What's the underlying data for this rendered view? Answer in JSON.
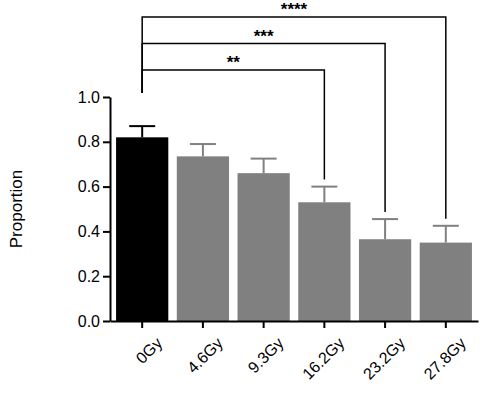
{
  "chart_data": {
    "type": "bar",
    "y_label": "Proportion",
    "categories": [
      "0Gy",
      "4.6Gy",
      "9.3Gy",
      "16.2Gy",
      "23.2Gy",
      "27.8Gy"
    ],
    "values": [
      0.82,
      0.735,
      0.66,
      0.53,
      0.365,
      0.35
    ],
    "errors": [
      0.05,
      0.055,
      0.065,
      0.07,
      0.09,
      0.075
    ],
    "colors": [
      "#000000",
      "#808080",
      "#808080",
      "#808080",
      "#808080",
      "#808080"
    ],
    "ylim": [
      0,
      1.0
    ],
    "yticks": [
      {
        "value": 0,
        "label": "0.0"
      },
      {
        "value": 0.2,
        "label": "0.2"
      },
      {
        "value": 0.4,
        "label": "0.4"
      },
      {
        "value": 0.6,
        "label": "0.6"
      },
      {
        "value": 0.8,
        "label": "0.8"
      },
      {
        "value": 1.0,
        "label": "1.0"
      }
    ],
    "grid": false,
    "annotations": [
      {
        "from": "0Gy",
        "to": "16.2Gy",
        "label": "**"
      },
      {
        "from": "0Gy",
        "to": "23.2Gy",
        "label": "***"
      },
      {
        "from": "0Gy",
        "to": "27.8Gy",
        "label": "****"
      }
    ]
  }
}
